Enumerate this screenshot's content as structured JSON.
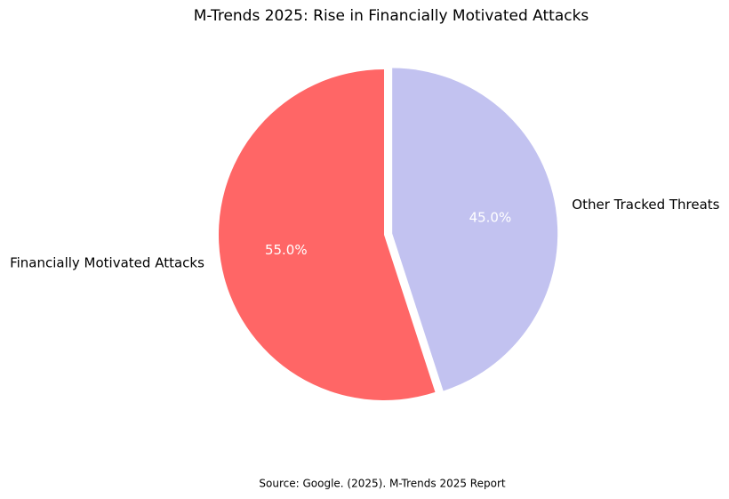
{
  "chart_data": {
    "type": "pie",
    "title": "M-Trends 2025: Rise in Financially Motivated Attacks",
    "categories": [
      "Financially Motivated Attacks",
      "Other Tracked Threats"
    ],
    "values": [
      55,
      45
    ],
    "value_labels": [
      "55.0%",
      "45.0%"
    ],
    "colors": [
      "#ff6666",
      "#c2c2f0"
    ],
    "explode": [
      0,
      0.05
    ],
    "start_angle": 90,
    "source": "Source: Google. (2025). M-Trends 2025 Report"
  }
}
